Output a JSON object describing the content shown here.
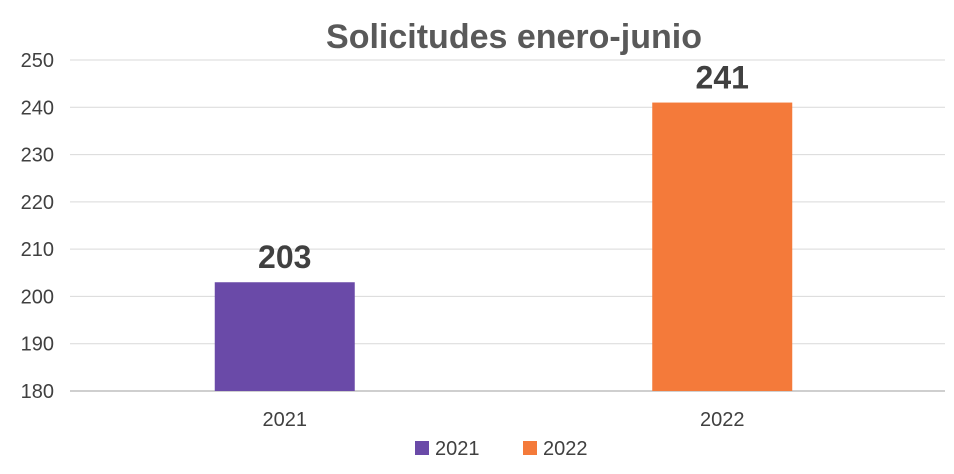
{
  "chart_data": {
    "type": "bar",
    "title": "Solicitudes enero-junio",
    "categories": [
      "2021",
      "2022"
    ],
    "values": [
      203,
      241
    ],
    "data_labels": [
      "203",
      "241"
    ],
    "colors": [
      "#6a4aa8",
      "#f47a3a"
    ],
    "ylim": [
      180,
      250
    ],
    "yticks": [
      180,
      190,
      200,
      210,
      220,
      230,
      240,
      250
    ],
    "ytick_labels": [
      "180",
      "190",
      "200",
      "210",
      "220",
      "230",
      "240",
      "250"
    ],
    "xlabel": "",
    "ylabel": "",
    "grid": true,
    "legend": {
      "position": "bottom",
      "entries": [
        "2021",
        "2022"
      ]
    }
  }
}
